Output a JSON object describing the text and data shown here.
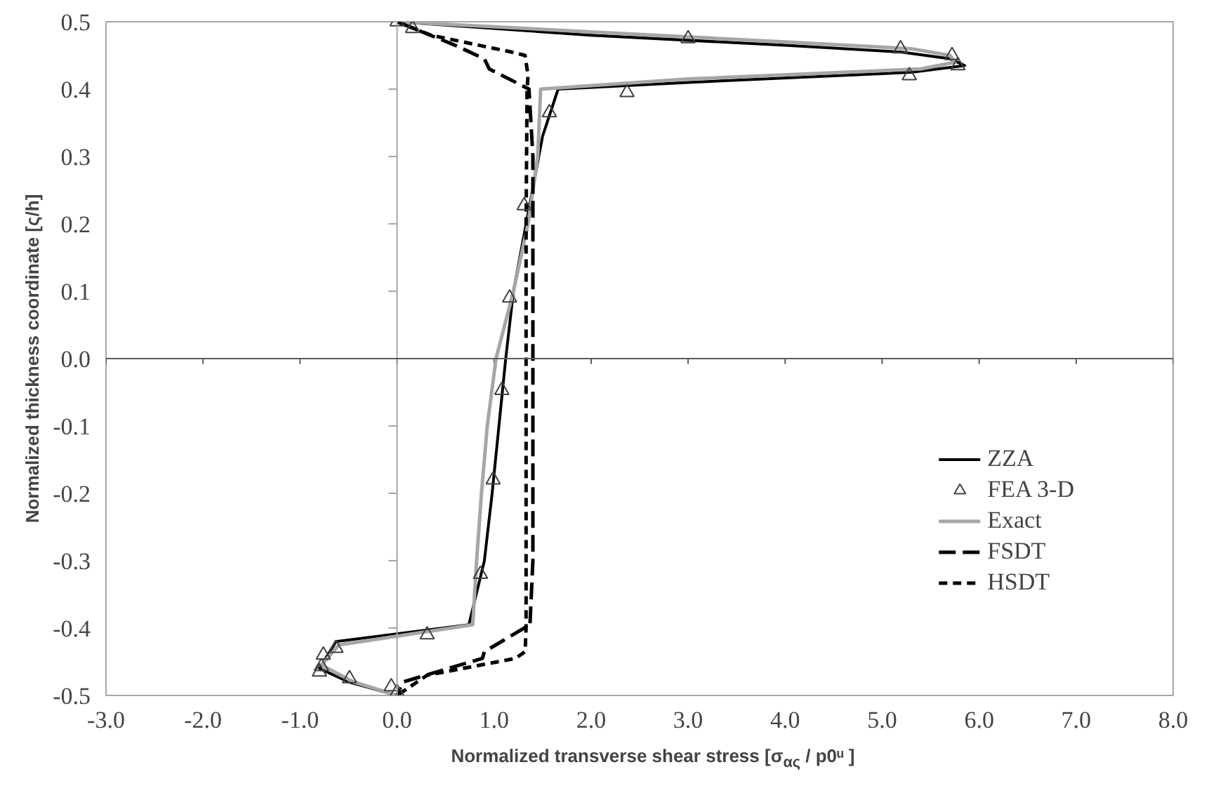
{
  "chart_data": {
    "type": "line",
    "xlabel": "Normalized transverse shear stress [σ$_{ας}$ / p0ᵘ ]",
    "ylabel": "Normalized thickness coordinate [ς/h]",
    "xlim": [
      -3,
      8
    ],
    "ylim": [
      -0.5,
      0.5
    ],
    "xticks": [
      {
        "value": -3,
        "label": "-3.0"
      },
      {
        "value": -2,
        "label": "-2.0"
      },
      {
        "value": -1,
        "label": "-1.0"
      },
      {
        "value": 0,
        "label": "0.0"
      },
      {
        "value": 1,
        "label": "1.0"
      },
      {
        "value": 2,
        "label": "2.0"
      },
      {
        "value": 3,
        "label": "3.0"
      },
      {
        "value": 4,
        "label": "4.0"
      },
      {
        "value": 5,
        "label": "5.0"
      },
      {
        "value": 6,
        "label": "6.0"
      },
      {
        "value": 7,
        "label": "7.0"
      },
      {
        "value": 8,
        "label": "8.0"
      }
    ],
    "yticks": [
      {
        "value": -0.5,
        "label": "-0.5"
      },
      {
        "value": -0.4,
        "label": "-0.4"
      },
      {
        "value": -0.3,
        "label": "-0.3"
      },
      {
        "value": -0.2,
        "label": "-0.2"
      },
      {
        "value": -0.1,
        "label": "-0.1"
      },
      {
        "value": 0,
        "label": "0.0"
      },
      {
        "value": 0.1,
        "label": "0.1"
      },
      {
        "value": 0.2,
        "label": "0.2"
      },
      {
        "value": 0.3,
        "label": "0.3"
      },
      {
        "value": 0.4,
        "label": "0.4"
      },
      {
        "value": 0.5,
        "label": "0.5"
      }
    ],
    "grid": false,
    "legend": "bottom right",
    "ref_lines": [
      {
        "axis": "x",
        "value": 0,
        "color": "#a6a6a6"
      },
      {
        "axis": "y",
        "value": 0,
        "color": "#595959"
      }
    ],
    "series": [
      {
        "name": "ZZA",
        "color": "#000000",
        "line_style": "solid",
        "x": [
          0,
          2,
          4,
          5.2,
          5.7,
          5.85,
          5.3,
          3,
          1.66,
          1.5,
          1.33,
          1.2,
          1.12,
          1.05,
          0.98,
          0.9,
          0.74,
          -0.63,
          -0.8,
          -0.5,
          0
        ],
        "values": [
          0.5,
          0.48,
          0.465,
          0.455,
          0.445,
          0.435,
          0.425,
          0.41,
          0.4,
          0.33,
          0.2,
          0.1,
          0,
          -0.1,
          -0.2,
          -0.3,
          -0.395,
          -0.42,
          -0.46,
          -0.48,
          -0.5
        ]
      },
      {
        "name": "FEA 3-D",
        "type": "scatter",
        "marker": "triangle",
        "color": "#404040",
        "x": [
          0,
          0.16,
          3.0,
          5.19,
          5.72,
          5.78,
          5.28,
          2.37,
          1.57,
          1.31,
          1.16,
          1.08,
          0.99,
          0.86,
          0.31,
          -0.63,
          -0.76,
          -0.78,
          -0.8,
          -0.49,
          -0.06,
          0
        ],
        "values": [
          0.5,
          0.49,
          0.475,
          0.46,
          0.45,
          0.435,
          0.42,
          0.395,
          0.365,
          0.227,
          0.09,
          -0.047,
          -0.18,
          -0.32,
          -0.41,
          -0.43,
          -0.44,
          -0.457,
          -0.465,
          -0.475,
          -0.487,
          -0.495
        ]
      },
      {
        "name": "Exact",
        "color": "#a6a6a6",
        "line_style": "solid",
        "x": [
          0,
          2,
          4,
          5.3,
          5.7,
          5.75,
          5.4,
          3,
          1.48,
          1.45,
          1.35,
          1.2,
          1.02,
          0.93,
          0.87,
          0.82,
          0.78,
          -0.6,
          -0.78,
          -0.45,
          0
        ],
        "values": [
          0.5,
          0.485,
          0.47,
          0.46,
          0.45,
          0.44,
          0.43,
          0.415,
          0.4,
          0.3,
          0.2,
          0.1,
          0,
          -0.1,
          -0.2,
          -0.3,
          -0.395,
          -0.425,
          -0.455,
          -0.48,
          -0.5
        ]
      },
      {
        "name": "FSDT",
        "color": "#000000",
        "line_style": "dashed",
        "x": [
          0,
          0.6,
          0.9,
          0.95,
          1.36,
          1.4,
          1.4,
          1.4,
          1.37,
          0.9,
          0.88,
          0.06,
          0
        ],
        "values": [
          0.5,
          0.465,
          0.445,
          0.43,
          0.4,
          0.3,
          0,
          -0.3,
          -0.395,
          -0.435,
          -0.445,
          -0.48,
          -0.5
        ]
      },
      {
        "name": "HSDT",
        "color": "#000000",
        "line_style": "dotted",
        "x": [
          0,
          0.35,
          1.18,
          1.32,
          1.35,
          1.34,
          1.33,
          1.33,
          1.33,
          1.33,
          1.32,
          1.22,
          0.31,
          0
        ],
        "values": [
          0.5,
          0.48,
          0.455,
          0.45,
          0.42,
          0.4,
          0.2,
          0,
          -0.2,
          -0.4,
          -0.435,
          -0.445,
          -0.47,
          -0.5
        ]
      }
    ]
  }
}
